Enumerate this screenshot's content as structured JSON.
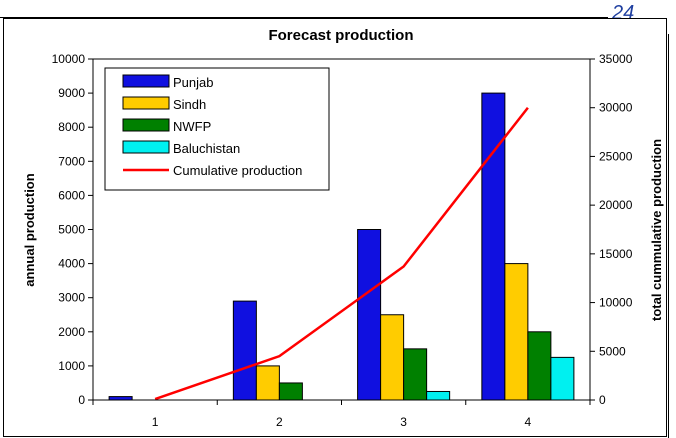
{
  "page": {
    "number": "24"
  },
  "chart_data": {
    "type": "bar",
    "title": "Forecast production",
    "xlabel": "",
    "ylabel": "annual production",
    "y2label": "total cummulative production",
    "categories": [
      "1",
      "2",
      "3",
      "4"
    ],
    "ylim": [
      0,
      10000
    ],
    "y2lim": [
      0,
      35000
    ],
    "yticks": [
      0,
      1000,
      2000,
      3000,
      4000,
      5000,
      6000,
      7000,
      8000,
      9000,
      10000
    ],
    "y2ticks": [
      0,
      5000,
      10000,
      15000,
      20000,
      25000,
      30000,
      35000
    ],
    "legend_position": "top-left",
    "grid": false,
    "series": [
      {
        "name": "Punjab",
        "type": "bar",
        "axis": "left",
        "color": "#1010e0",
        "values": [
          100,
          2900,
          5000,
          9000
        ]
      },
      {
        "name": "Sindh",
        "type": "bar",
        "axis": "left",
        "color": "#ffcc00",
        "values": [
          0,
          1000,
          2500,
          4000
        ]
      },
      {
        "name": "NWFP",
        "type": "bar",
        "axis": "left",
        "color": "#008000",
        "values": [
          0,
          500,
          1500,
          2000
        ]
      },
      {
        "name": "Baluchistan",
        "type": "bar",
        "axis": "left",
        "color": "#00f0f0",
        "values": [
          0,
          0,
          250,
          1250
        ]
      },
      {
        "name": "Cumulative production",
        "type": "line",
        "axis": "right",
        "color": "#ff0000",
        "values": [
          100,
          4500,
          13700,
          30000
        ]
      }
    ]
  }
}
